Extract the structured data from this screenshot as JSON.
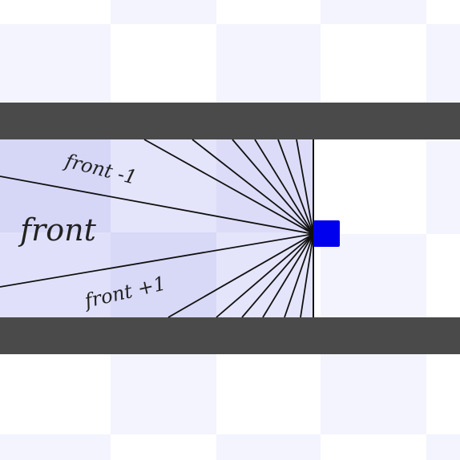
{
  "labels": {
    "front_minus_1": "front -1",
    "front": "front",
    "front_plus_1": "front +1"
  },
  "colors": {
    "background": "#ffffff",
    "checker_light": "#f3f4fd",
    "wall": "#4a4a4a",
    "corridor_fill": "#dcdcf8",
    "corridor_fill_light": "#e6e6fb",
    "ray_line": "#111111",
    "agent": "#0000ee"
  },
  "icons": {
    "agent": "blue-square-agent"
  },
  "diagram": {
    "ray_count_upper": 7,
    "ray_count_lower": 7
  }
}
